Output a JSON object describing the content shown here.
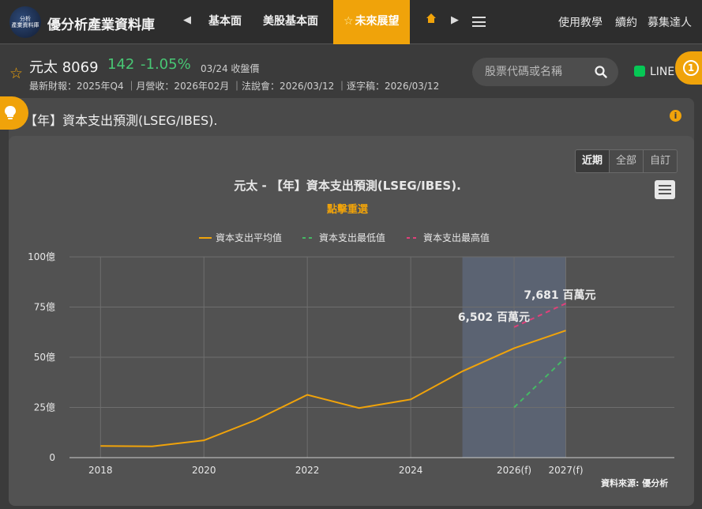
{
  "nav": {
    "logo_text": [
      "分析",
      "產業資料庫"
    ],
    "site_title": "優分析產業資料庫",
    "items": [
      "基本面",
      "美股基本面",
      "未來展望"
    ],
    "right_links": [
      "使用教學",
      "續約",
      "募集達人"
    ]
  },
  "stock": {
    "name": "元太 8069",
    "price": "142",
    "change": "-1.05%",
    "date": "03/24 收盤價",
    "meta": "最新財報：2025年Q4 ｜月營收：2026年02月 ｜法說會：2026/03/12 ｜逐字稿：2026/03/12"
  },
  "search": {
    "placeholder": "股票代碼或名稱"
  },
  "line_label": "LINE",
  "notification_count": "1",
  "panel": {
    "title": "【年】資本支出預測(LSEG/IBES)."
  },
  "range_buttons": [
    "近期",
    "全部",
    "自訂"
  ],
  "credit": "資料來源: 優分析",
  "colors": {
    "accent": "#f0a30a",
    "up_down": "#48c774",
    "avg": "#f0a30a",
    "low": "#45b864",
    "high": "#e0407a",
    "forecast_band": "#5d6678"
  },
  "chart_data": {
    "type": "line",
    "title": "元太 - 【年】資本支出預測(LSEG/IBES).",
    "subtitle": "點擊重選",
    "legend_position": "top-center",
    "grid": true,
    "x": [
      2018,
      2019,
      2020,
      2021,
      2022,
      2023,
      2024,
      2025,
      2026,
      2027
    ],
    "x_tick_labels": [
      "2018",
      "2020",
      "2022",
      "2024",
      "2026(f)",
      "2027(f)"
    ],
    "x_tick_values": [
      2018,
      2020,
      2022,
      2024,
      2026,
      2027
    ],
    "ylim": [
      0,
      100
    ],
    "y_unit": "億",
    "y_tick_labels": [
      "0",
      "25億",
      "50億",
      "75億",
      "100億"
    ],
    "forecast_range": [
      2025,
      2027
    ],
    "series": [
      {
        "name": "資本支出平均值",
        "style": "solid",
        "x": [
          2018,
          2019,
          2020,
          2021,
          2022,
          2023,
          2024,
          2025,
          2026,
          2027
        ],
        "values": [
          5.8,
          5.6,
          8.6,
          18.7,
          31.3,
          24.7,
          29.0,
          43.0,
          54.5,
          63.3
        ]
      },
      {
        "name": "資本支出最低值",
        "style": "dashed",
        "x": [
          2026,
          2027
        ],
        "values": [
          25.0,
          50.0
        ]
      },
      {
        "name": "資本支出最高值",
        "style": "dashed",
        "x": [
          2026,
          2027
        ],
        "values": [
          65.0,
          76.8
        ]
      }
    ],
    "annotations": [
      {
        "text": "7,681 百萬元",
        "x": 2027,
        "y": 76.8
      },
      {
        "text": "6,502 百萬元",
        "x": 2026,
        "y": 65.0
      }
    ]
  }
}
